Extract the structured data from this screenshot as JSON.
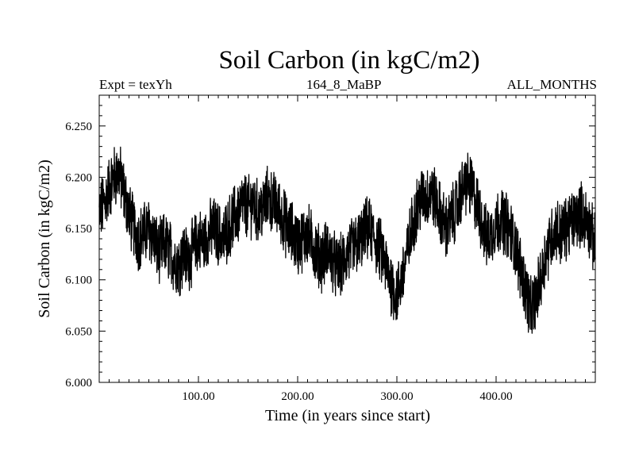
{
  "chart_data": {
    "type": "line",
    "title": "Soil Carbon (in kgC/m2)",
    "subtitle_left": "Expt = texYh",
    "subtitle_center": "164_8_MaBP",
    "subtitle_right": "ALL_MONTHS",
    "xlabel": "Time (in years since start)",
    "ylabel": "Soil Carbon (in kgC/m2)",
    "xlim": [
      0,
      500
    ],
    "ylim": [
      6.0,
      6.28
    ],
    "x_ticks": [
      100,
      200,
      300,
      400
    ],
    "x_tick_labels": [
      "100.00",
      "200.00",
      "300.00",
      "400.00"
    ],
    "y_ticks": [
      6.0,
      6.05,
      6.1,
      6.15,
      6.2,
      6.25
    ],
    "y_tick_labels": [
      "6.000",
      "6.050",
      "6.100",
      "6.150",
      "6.200",
      "6.250"
    ],
    "line_color": "#000000",
    "series": [
      {
        "x": [
          0,
          5,
          10,
          15,
          20,
          25,
          30,
          35,
          40,
          45,
          50,
          55,
          60,
          65,
          70,
          75,
          80,
          85,
          90,
          95,
          100,
          105,
          110,
          115,
          120,
          125,
          130,
          135,
          140,
          145,
          150,
          155,
          160,
          165,
          170,
          175,
          180,
          185,
          190,
          195,
          200,
          205,
          210,
          215,
          220,
          225,
          230,
          235,
          240,
          245,
          250,
          255,
          260,
          265,
          270,
          275,
          280,
          285,
          290,
          295,
          300,
          305,
          310,
          315,
          320,
          325,
          330,
          335,
          340,
          345,
          350,
          355,
          360,
          365,
          370,
          375,
          380,
          385,
          390,
          395,
          400,
          405,
          410,
          415,
          420,
          425,
          430,
          435,
          440,
          445,
          450,
          455,
          460,
          465,
          470,
          475,
          480,
          485,
          490,
          495,
          500
        ],
        "y": [
          6.165,
          6.175,
          6.19,
          6.2,
          6.205,
          6.185,
          6.165,
          6.15,
          6.14,
          6.145,
          6.15,
          6.14,
          6.125,
          6.135,
          6.13,
          6.12,
          6.115,
          6.125,
          6.12,
          6.13,
          6.14,
          6.135,
          6.145,
          6.15,
          6.145,
          6.14,
          6.15,
          6.16,
          6.165,
          6.175,
          6.17,
          6.175,
          6.165,
          6.17,
          6.18,
          6.175,
          6.17,
          6.16,
          6.15,
          6.145,
          6.135,
          6.14,
          6.145,
          6.135,
          6.125,
          6.12,
          6.13,
          6.12,
          6.11,
          6.115,
          6.125,
          6.13,
          6.135,
          6.14,
          6.15,
          6.145,
          6.135,
          6.125,
          6.11,
          6.095,
          6.085,
          6.1,
          6.125,
          6.15,
          6.17,
          6.18,
          6.18,
          6.185,
          6.175,
          6.16,
          6.15,
          6.16,
          6.17,
          6.185,
          6.195,
          6.19,
          6.175,
          6.16,
          6.14,
          6.145,
          6.155,
          6.16,
          6.155,
          6.145,
          6.13,
          6.11,
          6.09,
          6.07,
          6.08,
          6.1,
          6.125,
          6.14,
          6.15,
          6.145,
          6.15,
          6.155,
          6.16,
          6.165,
          6.16,
          6.15,
          6.13
        ]
      }
    ]
  }
}
